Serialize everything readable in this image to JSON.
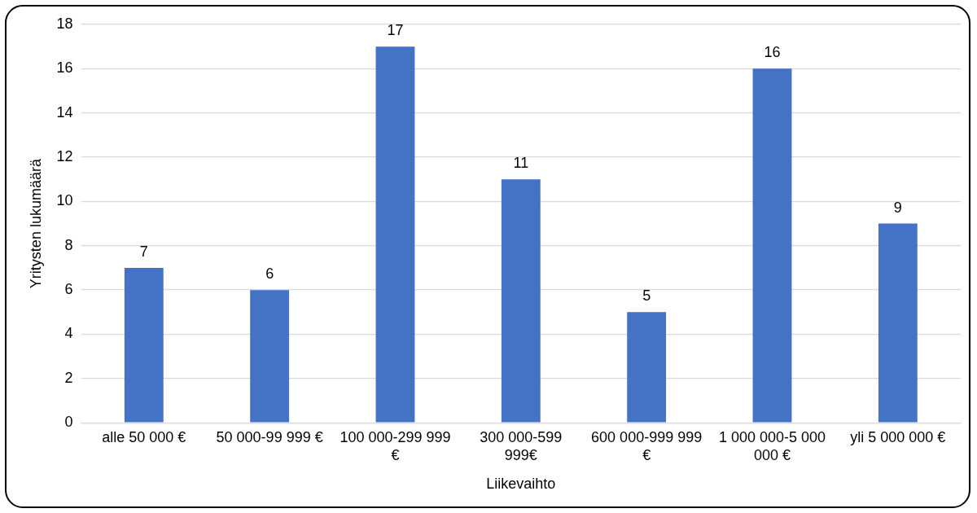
{
  "chart_data": {
    "type": "bar",
    "xlabel": "Liikevaihto",
    "ylabel": "Yritysten lukumäärä",
    "categories": [
      "alle 50 000 €",
      "50 000-99 999 €",
      "100 000-299 999 €",
      "300 000-599 999€",
      "600 000-999 999 €",
      "1 000 000-5 000 000 €",
      "yli 5 000 000 €"
    ],
    "values": [
      7,
      6,
      17,
      11,
      5,
      16,
      9
    ],
    "color": "#4472c4",
    "ylim": [
      0,
      18
    ],
    "yticks": [
      0,
      2,
      4,
      6,
      8,
      10,
      12,
      14,
      16,
      18
    ],
    "grid": "y",
    "data_labels": true,
    "legend": false
  }
}
